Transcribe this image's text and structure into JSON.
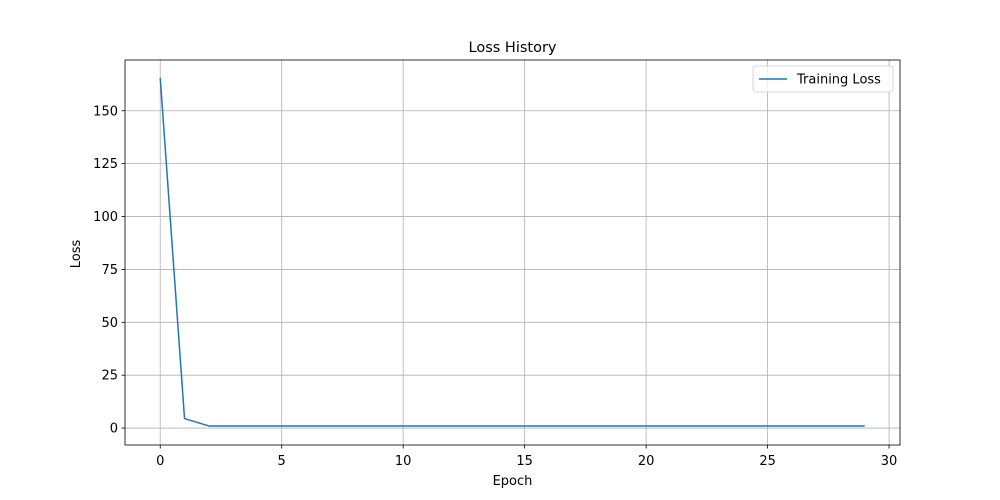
{
  "chart_data": {
    "type": "line",
    "title": "Loss History",
    "xlabel": "Epoch",
    "ylabel": "Loss",
    "xlim": [
      -1.45,
      30.45
    ],
    "ylim": [
      -8.0,
      174.0
    ],
    "xticks": [
      0,
      5,
      10,
      15,
      20,
      25,
      30
    ],
    "yticks": [
      0,
      25,
      50,
      75,
      100,
      125,
      150
    ],
    "grid": true,
    "legend_position": "top-right",
    "series": [
      {
        "name": "Training Loss",
        "color": "#1f77b4",
        "x": [
          0,
          1,
          2,
          3,
          4,
          5,
          6,
          7,
          8,
          9,
          10,
          11,
          12,
          13,
          14,
          15,
          16,
          17,
          18,
          19,
          20,
          21,
          22,
          23,
          24,
          25,
          26,
          27,
          28,
          29
        ],
        "y": [
          165.5,
          4.5,
          1.0,
          1.0,
          1.0,
          1.0,
          1.0,
          1.0,
          1.0,
          1.0,
          1.0,
          1.0,
          1.0,
          1.0,
          1.0,
          1.0,
          1.0,
          1.0,
          1.0,
          1.0,
          1.0,
          1.0,
          1.0,
          1.0,
          1.0,
          1.0,
          1.0,
          1.0,
          1.0,
          1.0
        ]
      }
    ]
  }
}
